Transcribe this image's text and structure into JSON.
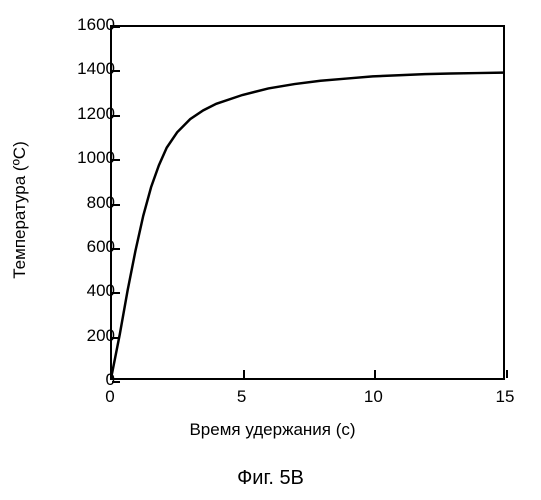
{
  "chart": {
    "type": "line",
    "xlabel": "Время удержания (с)",
    "ylabel": "Температура (ºС)",
    "caption": "Фиг. 5В",
    "xlim": [
      0,
      15
    ],
    "ylim": [
      0,
      1600
    ],
    "xticks": [
      0,
      5,
      10,
      15
    ],
    "yticks": [
      0,
      200,
      400,
      600,
      800,
      1000,
      1200,
      1400,
      1600
    ],
    "label_fontsize": 17,
    "caption_fontsize": 20,
    "line_color": "#000000",
    "line_width": 2.5,
    "background_color": "#ffffff",
    "border_color": "#000000",
    "data": [
      {
        "x": 0.0,
        "y": 20
      },
      {
        "x": 0.3,
        "y": 200
      },
      {
        "x": 0.6,
        "y": 400
      },
      {
        "x": 0.9,
        "y": 580
      },
      {
        "x": 1.2,
        "y": 740
      },
      {
        "x": 1.5,
        "y": 870
      },
      {
        "x": 1.8,
        "y": 970
      },
      {
        "x": 2.1,
        "y": 1050
      },
      {
        "x": 2.5,
        "y": 1120
      },
      {
        "x": 3.0,
        "y": 1180
      },
      {
        "x": 3.5,
        "y": 1220
      },
      {
        "x": 4.0,
        "y": 1250
      },
      {
        "x": 5.0,
        "y": 1290
      },
      {
        "x": 6.0,
        "y": 1320
      },
      {
        "x": 7.0,
        "y": 1340
      },
      {
        "x": 8.0,
        "y": 1355
      },
      {
        "x": 9.0,
        "y": 1365
      },
      {
        "x": 10.0,
        "y": 1375
      },
      {
        "x": 11.0,
        "y": 1380
      },
      {
        "x": 12.0,
        "y": 1385
      },
      {
        "x": 13.0,
        "y": 1388
      },
      {
        "x": 14.0,
        "y": 1390
      },
      {
        "x": 15.0,
        "y": 1392
      }
    ]
  }
}
